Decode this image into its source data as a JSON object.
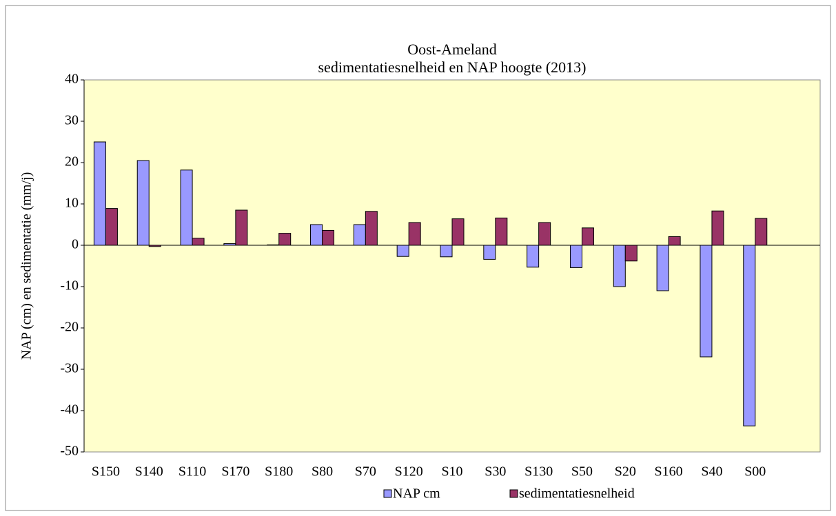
{
  "chart_data": {
    "type": "bar",
    "title": "Oost-Ameland",
    "subtitle": "sedimentatiesnelheid en NAP hoogte (2013)",
    "y_label": "NAP (cm) en sedimentatie (mm/j)",
    "categories": [
      "S150",
      "S140",
      "S110",
      "S170",
      "S180",
      "S80",
      "S70",
      "S120",
      "S10",
      "S30",
      "S130",
      "S50",
      "S20",
      "S160",
      "S40",
      "S00",
      null
    ],
    "series": [
      {
        "name": "NAP cm",
        "color": "#9999ff",
        "values": [
          25,
          20.5,
          18.2,
          0.4,
          0.1,
          5,
          5,
          -2.7,
          -2.8,
          -3.4,
          -5.3,
          -5.4,
          -10,
          -11,
          -27,
          -43.7,
          null
        ]
      },
      {
        "name": "sedimentatiesnelheid",
        "color": "#993366",
        "values": [
          8.9,
          -0.3,
          1.7,
          8.5,
          2.9,
          3.6,
          8.2,
          5.5,
          6.4,
          6.6,
          5.5,
          4.2,
          -3.8,
          2.1,
          8.3,
          6.5,
          null
        ]
      }
    ],
    "ylim": [
      -50,
      40
    ],
    "yticks": [
      -50,
      -40,
      -30,
      -20,
      -10,
      0,
      10,
      20,
      30,
      40
    ],
    "grid": false,
    "legend": "bottom",
    "background": "#ffffcc"
  }
}
